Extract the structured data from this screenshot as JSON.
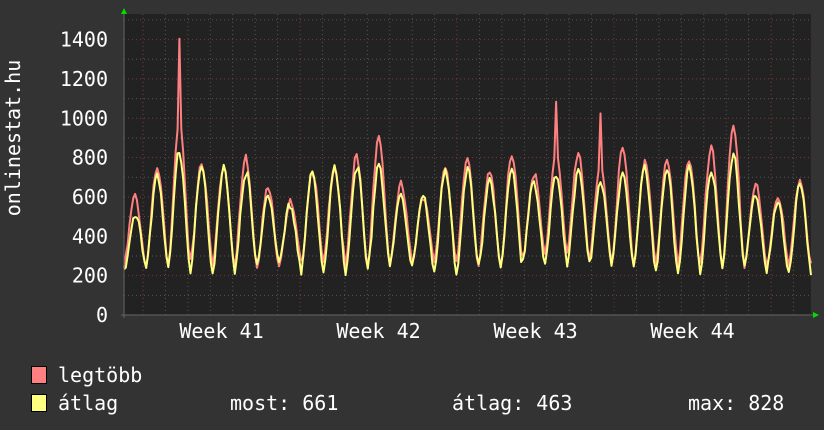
{
  "chart_data": {
    "type": "line",
    "ylabel": "onlinestat.hu",
    "ylim": [
      0,
      1530
    ],
    "yticks": [
      0,
      200,
      400,
      600,
      800,
      1000,
      1200,
      1400
    ],
    "ytick_labels": [
      "0",
      "200",
      "400",
      "600",
      "800",
      "1000",
      "1200",
      "1400"
    ],
    "xtick_labels": [
      "Week 41",
      "Week 42",
      "Week 43",
      "Week 44"
    ],
    "grid": true,
    "background": "#222222",
    "canvas": "#333333",
    "series": [
      {
        "name": "legtöbb",
        "color": "#ff8080",
        "daily_peaks": [
          600,
          730,
          1380,
          780,
          760,
          800,
          640,
          570,
          740,
          760,
          810,
          890,
          660,
          610,
          760,
          800,
          720,
          800,
          720,
          1100,
          830,
          1020,
          840,
          780,
          800,
          800,
          840,
          940,
          660,
          610,
          700
        ],
        "daily_troughs": [
          240,
          260,
          250,
          260,
          250,
          255,
          260,
          270,
          255,
          250,
          245,
          260,
          270,
          265,
          255,
          250,
          260,
          255,
          300,
          310,
          300,
          280,
          270,
          260,
          255,
          250,
          255,
          250,
          255,
          250,
          240
        ]
      },
      {
        "name": "átlag",
        "color": "#ffff80",
        "daily_peaks": [
          520,
          720,
          830,
          750,
          740,
          730,
          620,
          560,
          720,
          740,
          760,
          780,
          620,
          590,
          720,
          740,
          700,
          750,
          680,
          700,
          720,
          680,
          730,
          750,
          730,
          740,
          740,
          830,
          620,
          560,
          660
        ],
        "daily_troughs": [
          220,
          230,
          225,
          230,
          225,
          230,
          240,
          245,
          230,
          225,
          220,
          235,
          245,
          240,
          230,
          225,
          235,
          230,
          270,
          280,
          270,
          255,
          245,
          235,
          230,
          225,
          230,
          225,
          230,
          225,
          220
        ]
      }
    ]
  },
  "legend": {
    "items": [
      {
        "label": "legtöbb",
        "color": "#ff8080"
      },
      {
        "label": "átlag",
        "color": "#ffff80"
      }
    ],
    "stats": {
      "current": "most: 661",
      "average": "átlag: 463",
      "max": "max: 828"
    }
  }
}
